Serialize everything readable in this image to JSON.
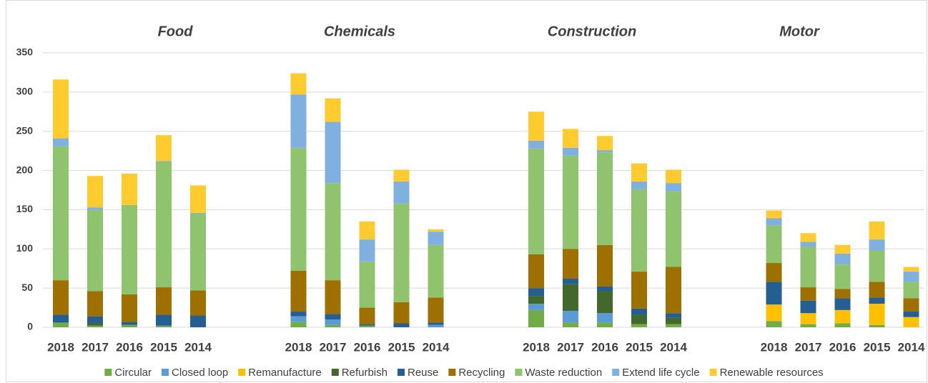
{
  "chart_data": {
    "type": "stacked-bar",
    "groups": [
      "Food",
      "Chemicals",
      "Construction",
      "Motor"
    ],
    "categories": [
      "2018",
      "2017",
      "2016",
      "2015",
      "2014",
      "2018",
      "2017",
      "2016",
      "2015",
      "2014",
      "2018",
      "2017",
      "2016",
      "2015",
      "2014",
      "2018",
      "2017",
      "2016",
      "2015",
      "2014"
    ],
    "ylim": [
      0,
      350
    ],
    "yticks": [
      0,
      50,
      100,
      150,
      200,
      250,
      300,
      350
    ],
    "grid": true,
    "legend": "bottom",
    "series": [
      {
        "name": "Circular",
        "color": "#70ad47",
        "values": [
          6,
          2,
          3,
          2,
          0,
          7,
          3,
          2,
          0,
          0,
          22,
          6,
          6,
          4,
          4,
          8,
          4,
          5,
          3,
          0
        ]
      },
      {
        "name": "Closed loop",
        "color": "#5b9bd5",
        "values": [
          0,
          0,
          0,
          0,
          0,
          7,
          7,
          0,
          0,
          3,
          8,
          15,
          12,
          0,
          0,
          0,
          0,
          0,
          0,
          0
        ]
      },
      {
        "name": "Remanufacture",
        "color": "#ffc000",
        "values": [
          0,
          0,
          0,
          0,
          0,
          0,
          0,
          0,
          0,
          0,
          0,
          0,
          0,
          0,
          0,
          21,
          14,
          17,
          27,
          13
        ]
      },
      {
        "name": "Refurbish",
        "color": "#43682b",
        "values": [
          0,
          3,
          0,
          0,
          0,
          0,
          0,
          0,
          0,
          0,
          10,
          34,
          28,
          12,
          8,
          0,
          0,
          0,
          0,
          0
        ]
      },
      {
        "name": "Reuse",
        "color": "#255e91",
        "values": [
          10,
          9,
          4,
          14,
          15,
          6,
          7,
          2,
          5,
          3,
          10,
          7,
          6,
          8,
          6,
          29,
          16,
          15,
          8,
          7
        ]
      },
      {
        "name": "Recycling",
        "color": "#9e7000",
        "values": [
          44,
          32,
          35,
          35,
          32,
          52,
          43,
          21,
          27,
          32,
          43,
          38,
          53,
          47,
          59,
          24,
          17,
          12,
          20,
          17
        ]
      },
      {
        "name": "Waste reduction",
        "color": "#90c36d",
        "values": [
          171,
          104,
          114,
          160,
          98,
          157,
          124,
          59,
          126,
          67,
          135,
          119,
          118,
          105,
          96,
          48,
          52,
          31,
          40,
          21
        ]
      },
      {
        "name": "Extend life cycle",
        "color": "#7fb0e0",
        "values": [
          10,
          3,
          0,
          1,
          1,
          68,
          78,
          28,
          28,
          17,
          10,
          10,
          3,
          10,
          11,
          9,
          6,
          14,
          14,
          13
        ]
      },
      {
        "name": "Renewable resources",
        "color": "#ffcb2f",
        "values": [
          75,
          40,
          40,
          33,
          35,
          27,
          30,
          23,
          15,
          3,
          37,
          24,
          18,
          23,
          17,
          10,
          11,
          11,
          23,
          6
        ]
      }
    ]
  }
}
